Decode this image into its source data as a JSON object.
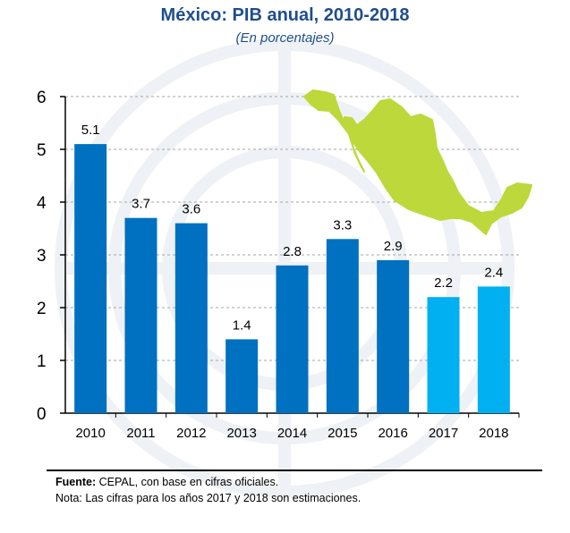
{
  "header": {
    "title": "México: PIB anual, 2010-2018",
    "subtitle": "(En porcentajes)"
  },
  "footer": {
    "source_label": "Fuente:",
    "source_text": " CEPAL, con base en cifras oficiales.",
    "note": "Nota: Las cifras para los años 2017 y 2018 son estimaciones."
  },
  "chart_data": {
    "type": "bar",
    "title": "México: PIB anual, 2010-2018",
    "subtitle": "(En porcentajes)",
    "categories": [
      "2010",
      "2011",
      "2012",
      "2013",
      "2014",
      "2015",
      "2016",
      "2017",
      "2018"
    ],
    "values": [
      5.1,
      3.7,
      3.6,
      1.4,
      2.8,
      3.3,
      2.9,
      2.2,
      2.4
    ],
    "data_labels": [
      "5.1",
      "3.7",
      "3.6",
      "1.4",
      "2.8",
      "3.3",
      "2.9",
      "2.2",
      "2.4"
    ],
    "estimated": [
      false,
      false,
      false,
      false,
      false,
      false,
      false,
      true,
      true
    ],
    "ylim": [
      0,
      6
    ],
    "yticks": [
      0,
      1,
      2,
      3,
      4,
      5,
      6
    ],
    "grid": true,
    "colors": {
      "actual": "#0070c0",
      "estimate": "#00b0f0",
      "map": "#bcd83b",
      "title": "#1f4e8c",
      "grid": "#a6a6a6"
    }
  }
}
